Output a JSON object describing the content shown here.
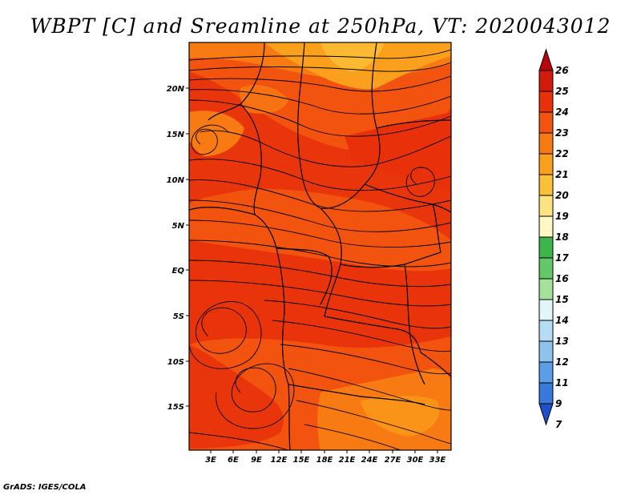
{
  "title": "WBPT [C] and Sreamline at 250hPa, VT: 2020043012",
  "credit": "GrADS: IGES/COLA",
  "map": {
    "lat_labels": [
      "20N",
      "15N",
      "10N",
      "5N",
      "EQ",
      "5S",
      "10S",
      "15S"
    ],
    "lon_labels": [
      "3E",
      "6E",
      "9E",
      "12E",
      "15E",
      "18E",
      "21E",
      "24E",
      "27E",
      "30E",
      "33E"
    ],
    "field_colors": {
      "c24": "#e8300a",
      "c23": "#f2530f",
      "c22": "#f87a12",
      "c21": "#fba01c",
      "c20": "#fcc13a"
    }
  },
  "colorbar": {
    "labels": [
      "26",
      "25",
      "24",
      "23",
      "22",
      "21",
      "20",
      "19",
      "18",
      "17",
      "16",
      "15",
      "14",
      "13",
      "12",
      "11",
      "9",
      "7"
    ],
    "colors": [
      "#b8070c",
      "#d31b0d",
      "#e8300a",
      "#f2530f",
      "#f87a12",
      "#fba01c",
      "#fcc13a",
      "#fde381",
      "#fef8c2",
      "#3eb54a",
      "#64c86b",
      "#a6e19b",
      "#e2f5fa",
      "#b4dcf3",
      "#8ec3ee",
      "#5b9ee6",
      "#3a79dc",
      "#1e50cd"
    ]
  }
}
